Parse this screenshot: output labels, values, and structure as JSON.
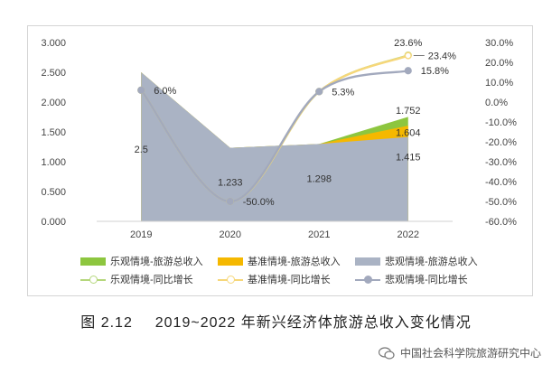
{
  "chart_data": {
    "type": "area",
    "categories": [
      "2019",
      "2020",
      "2021",
      "2022"
    ],
    "left_axis": {
      "ylim": [
        0,
        3.0
      ],
      "ticks": [
        "0.000",
        "0.500",
        "1.000",
        "1.500",
        "2.000",
        "2.500",
        "3.000"
      ]
    },
    "right_axis": {
      "ylim": [
        -60,
        30
      ],
      "ticks": [
        "-60.0%",
        "-50.0%",
        "-40.0%",
        "-30.0%",
        "-20.0%",
        "-10.0%",
        "0.0%",
        "10.0%",
        "20.0%",
        "30.0%"
      ]
    },
    "area_series": [
      {
        "name": "乐观情境-旅游总收入",
        "color": "#8dc63f",
        "values": [
          2.5,
          1.233,
          1.298,
          1.752
        ]
      },
      {
        "name": "基准情境-旅游总收入",
        "color": "#f5b800",
        "values": [
          2.5,
          1.233,
          1.298,
          1.604
        ]
      },
      {
        "name": "悲观情境-旅游总收入",
        "color": "#aab3c4",
        "values": [
          2.5,
          1.233,
          1.298,
          1.415
        ]
      }
    ],
    "line_series": [
      {
        "name": "乐观情境-同比增长",
        "color": "#b5d77c",
        "values": [
          6.0,
          -50.0,
          5.3,
          23.6
        ]
      },
      {
        "name": "基准情境-同比增长",
        "color": "#f6d77a",
        "values": [
          6.0,
          -50.0,
          5.3,
          23.4
        ]
      },
      {
        "name": "悲观情境-同比增长",
        "color": "#a2a9bd",
        "values": [
          6.0,
          -50.0,
          5.3,
          15.8
        ]
      }
    ],
    "data_labels": {
      "area": [
        "2.5",
        "1.233",
        "1.298",
        "1.752",
        "1.604",
        "1.415"
      ],
      "line": [
        "6.0%",
        "-50.0%",
        "5.3%",
        "23.6%",
        "23.4%",
        "15.8%"
      ]
    },
    "grid": false,
    "legend_position": "bottom"
  },
  "caption": {
    "number": "图 2.12",
    "text": "2019~2022 年新兴经济体旅游总收入变化情况"
  },
  "watermark": {
    "text": "中国社会科学院旅游研究中心"
  }
}
